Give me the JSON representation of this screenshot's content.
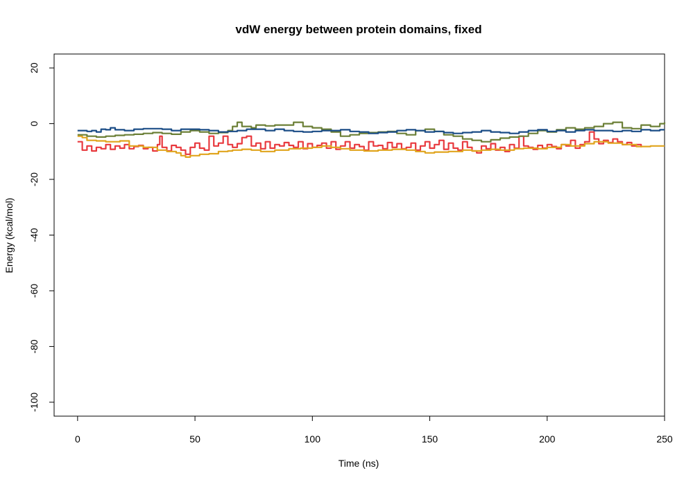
{
  "chart_data": {
    "type": "line",
    "title": "vdW energy between protein domains, fixed",
    "xlabel": "Time (ns)",
    "ylabel": "Energy (kcal/mol)",
    "xlim": [
      -10,
      250
    ],
    "ylim": [
      -105,
      25
    ],
    "xticks": [
      0,
      50,
      100,
      150,
      200,
      250
    ],
    "yticks": [
      -100,
      -80,
      -60,
      -40,
      -20,
      0,
      20
    ],
    "grid": false,
    "legend": "none",
    "series": [
      {
        "color": "#e8383d",
        "x": [
          0,
          2,
          4,
          6,
          8,
          10,
          12,
          14,
          16,
          18,
          20,
          22,
          24,
          26,
          28,
          30,
          32,
          34,
          35,
          36,
          38,
          40,
          42,
          44,
          46,
          48,
          50,
          52,
          54,
          56,
          58,
          60,
          62,
          64,
          66,
          68,
          70,
          72,
          74,
          76,
          78,
          80,
          82,
          84,
          86,
          88,
          90,
          92,
          94,
          96,
          98,
          100,
          102,
          104,
          106,
          108,
          110,
          112,
          114,
          116,
          118,
          120,
          122,
          124,
          126,
          128,
          130,
          132,
          134,
          136,
          138,
          140,
          142,
          144,
          146,
          148,
          150,
          152,
          154,
          156,
          158,
          160,
          162,
          164,
          166,
          168,
          170,
          172,
          174,
          176,
          178,
          180,
          182,
          184,
          186,
          188,
          190,
          192,
          194,
          196,
          198,
          200,
          202,
          204,
          206,
          208,
          210,
          212,
          214,
          216,
          218,
          220,
          222,
          224,
          226,
          228,
          230,
          232,
          234,
          236,
          238,
          240
        ],
        "y": [
          -6.5,
          -9.5,
          -8,
          -9.8,
          -8.5,
          -9,
          -7.5,
          -9.2,
          -8,
          -8.8,
          -7.5,
          -9,
          -8.2,
          -7.8,
          -9,
          -8.5,
          -9.8,
          -7.5,
          -4.5,
          -8.5,
          -9.8,
          -7.8,
          -8.5,
          -9.5,
          -11,
          -8.5,
          -7,
          -8.8,
          -9.5,
          -4.5,
          -8,
          -7,
          -4.5,
          -7.5,
          -8.5,
          -7.2,
          -5,
          -4.5,
          -8,
          -7,
          -9,
          -6.5,
          -8.8,
          -7.5,
          -8,
          -6.8,
          -7.8,
          -8.5,
          -6.5,
          -9,
          -7.2,
          -8.5,
          -7.8,
          -7,
          -8.8,
          -6.5,
          -9.2,
          -8,
          -6.5,
          -8.8,
          -7.5,
          -8.2,
          -9.5,
          -6.5,
          -8,
          -7.8,
          -9,
          -6.8,
          -8.5,
          -7.2,
          -9,
          -8.5,
          -7,
          -9.5,
          -8,
          -6.5,
          -8.8,
          -7.5,
          -6,
          -9.2,
          -7,
          -8.8,
          -9.5,
          -6.5,
          -8.5,
          -9.8,
          -10.5,
          -8,
          -9,
          -7.2,
          -9.5,
          -8.5,
          -10,
          -7.5,
          -8.8,
          -4.5,
          -8,
          -8.5,
          -9.2,
          -7.8,
          -8.8,
          -7.5,
          -8.2,
          -9,
          -7.5,
          -8,
          -6,
          -8.8,
          -7.5,
          -6.5,
          -3,
          -5.5,
          -7.2,
          -6,
          -6.8,
          -5.5,
          -6.5,
          -7.5,
          -6.8,
          -8,
          -7.5,
          -8.5
        ]
      },
      {
        "color": "#e0a41c",
        "x": [
          0,
          2,
          4,
          8,
          12,
          18,
          22,
          28,
          34,
          38,
          42,
          44,
          46,
          48,
          52,
          56,
          60,
          64,
          66,
          70,
          74,
          78,
          84,
          90,
          95,
          100,
          104,
          108,
          112,
          116,
          122,
          128,
          134,
          140,
          144,
          148,
          152,
          158,
          164,
          168,
          172,
          176,
          180,
          186,
          190,
          196,
          200,
          206,
          210,
          216,
          220,
          226,
          232,
          238,
          244,
          250
        ],
        "y": [
          -4.5,
          -5,
          -6,
          -6.2,
          -6.5,
          -6.2,
          -8,
          -8.5,
          -9.5,
          -10,
          -10.5,
          -11.5,
          -12,
          -11.5,
          -11,
          -10.8,
          -10,
          -9.8,
          -9.5,
          -9.2,
          -9.5,
          -10,
          -9.5,
          -9,
          -8.8,
          -8.5,
          -8,
          -8.5,
          -9,
          -9.5,
          -9.8,
          -9.5,
          -9.2,
          -9.5,
          -10,
          -10.5,
          -10.2,
          -10,
          -9.5,
          -9.8,
          -9.5,
          -9.2,
          -9.5,
          -9,
          -8.8,
          -9,
          -8.5,
          -7.5,
          -8,
          -7.2,
          -6.5,
          -7,
          -7.5,
          -8.2,
          -8,
          -8
        ]
      },
      {
        "color": "#6b7f36",
        "x": [
          0,
          4,
          8,
          12,
          16,
          20,
          24,
          28,
          32,
          36,
          40,
          44,
          48,
          52,
          56,
          60,
          64,
          66,
          68,
          70,
          74,
          76,
          80,
          84,
          88,
          92,
          96,
          100,
          104,
          108,
          112,
          116,
          120,
          124,
          128,
          132,
          136,
          140,
          144,
          148,
          152,
          156,
          160,
          164,
          168,
          172,
          176,
          180,
          184,
          188,
          192,
          196,
          200,
          204,
          208,
          212,
          216,
          220,
          224,
          228,
          232,
          236,
          240,
          244,
          248,
          250
        ],
        "y": [
          -4,
          -4.5,
          -4.8,
          -4.5,
          -4.2,
          -4,
          -3.8,
          -3.5,
          -3.2,
          -3.5,
          -3.8,
          -3,
          -2.5,
          -3,
          -3.5,
          -3.2,
          -2.5,
          -1,
          0.5,
          -1,
          -1.5,
          -0.5,
          -0.8,
          -0.5,
          -0.5,
          0.5,
          -1,
          -1.5,
          -2,
          -3,
          -4.5,
          -4,
          -3.5,
          -3.2,
          -3,
          -2.8,
          -3.5,
          -4,
          -2.5,
          -2,
          -2.8,
          -4,
          -4.5,
          -5.5,
          -6,
          -6.5,
          -5.8,
          -5.2,
          -4.8,
          -4.5,
          -3.5,
          -2.5,
          -3,
          -2.2,
          -1.5,
          -2,
          -1.5,
          -1,
          0,
          0.5,
          -1.5,
          -1.8,
          -0.5,
          -1,
          0,
          0.5
        ]
      },
      {
        "color": "#1a4c86",
        "x": [
          0,
          4,
          6,
          8,
          10,
          12,
          14,
          16,
          20,
          24,
          28,
          32,
          36,
          40,
          44,
          48,
          52,
          56,
          60,
          64,
          68,
          72,
          76,
          80,
          84,
          88,
          92,
          96,
          100,
          104,
          108,
          112,
          116,
          120,
          124,
          128,
          132,
          136,
          140,
          144,
          148,
          152,
          156,
          160,
          164,
          168,
          172,
          176,
          180,
          184,
          188,
          192,
          196,
          200,
          204,
          208,
          212,
          216,
          220,
          224,
          228,
          232,
          236,
          240,
          244,
          248,
          250
        ],
        "y": [
          -2.5,
          -2.8,
          -2.5,
          -3,
          -2,
          -2.2,
          -1.5,
          -2.2,
          -2.5,
          -2,
          -1.8,
          -1.8,
          -2,
          -2.5,
          -2,
          -2,
          -2.2,
          -2.5,
          -3,
          -2.8,
          -2.5,
          -2,
          -2,
          -2.5,
          -2,
          -2.5,
          -2.8,
          -3,
          -2.8,
          -2.5,
          -2.5,
          -2.2,
          -2.8,
          -3,
          -3.5,
          -3.2,
          -3,
          -2.5,
          -2.2,
          -2.5,
          -3,
          -2.8,
          -3.2,
          -3.5,
          -3.2,
          -3,
          -2.5,
          -3,
          -3.2,
          -3.5,
          -3,
          -2.5,
          -2.2,
          -2.8,
          -2.5,
          -3,
          -2.5,
          -2.2,
          -2.5,
          -2.5,
          -2.8,
          -2.5,
          -2.8,
          -2.2,
          -2.5,
          -2.2,
          -2.2
        ]
      }
    ]
  }
}
